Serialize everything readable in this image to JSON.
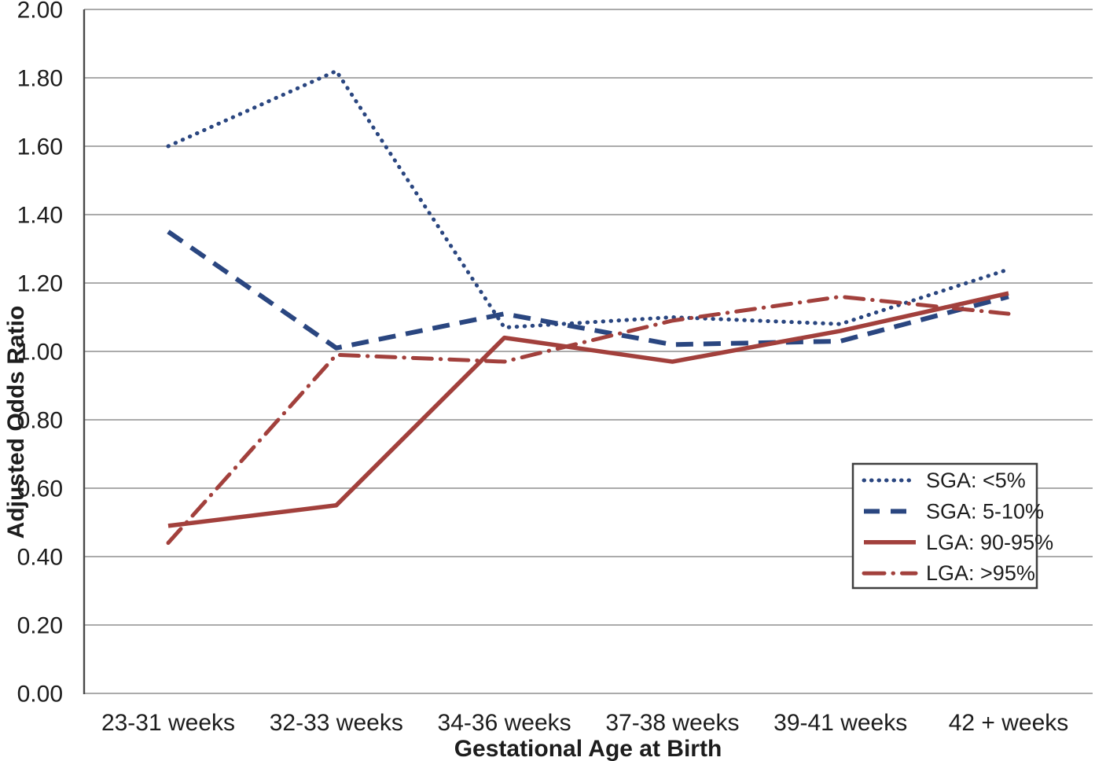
{
  "chart_data": {
    "type": "line",
    "title": "",
    "xlabel": "Gestational Age at Birth",
    "ylabel": "Adjusted Odds Ratio",
    "ylim": [
      0.0,
      2.0
    ],
    "ytick_step": 0.2,
    "ytick_labels": [
      "0.00",
      "0.20",
      "0.40",
      "0.60",
      "0.80",
      "1.00",
      "1.20",
      "1.40",
      "1.60",
      "1.80",
      "2.00"
    ],
    "categories": [
      "23-31 weeks",
      "32-33 weeks",
      "34-36 weeks",
      "37-38 weeks",
      "39-41 weeks",
      "42 + weeks"
    ],
    "grid": true,
    "legend_position": "inside-right",
    "colors": {
      "sga_blue": "#2a4680",
      "lga_red": "#a2403c"
    },
    "series": [
      {
        "name": "SGA: <5%",
        "color": "#2a4680",
        "style": "dotted",
        "values": [
          1.6,
          1.82,
          1.07,
          1.1,
          1.08,
          1.24
        ]
      },
      {
        "name": "SGA: 5-10%",
        "color": "#2a4680",
        "style": "dashed",
        "values": [
          1.35,
          1.01,
          1.11,
          1.02,
          1.03,
          1.16
        ]
      },
      {
        "name": "LGA: 90-95%",
        "color": "#a2403c",
        "style": "solid",
        "values": [
          0.49,
          0.55,
          1.04,
          0.97,
          1.06,
          1.17
        ]
      },
      {
        "name": "LGA: >95%",
        "color": "#a2403c",
        "style": "dashdot",
        "values": [
          0.44,
          0.99,
          0.97,
          1.09,
          1.16,
          1.11
        ]
      }
    ]
  }
}
